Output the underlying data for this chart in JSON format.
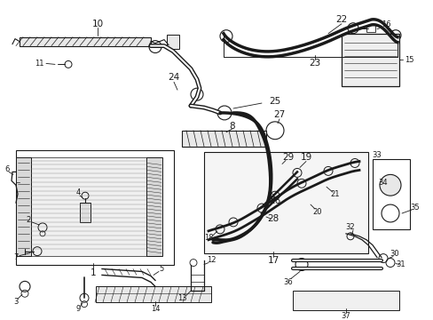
{
  "bg_color": "#ffffff",
  "line_color": "#1a1a1a",
  "fig_width": 4.89,
  "fig_height": 3.6,
  "dpi": 100,
  "label_fontsize": 7.5,
  "small_fontsize": 6.0
}
